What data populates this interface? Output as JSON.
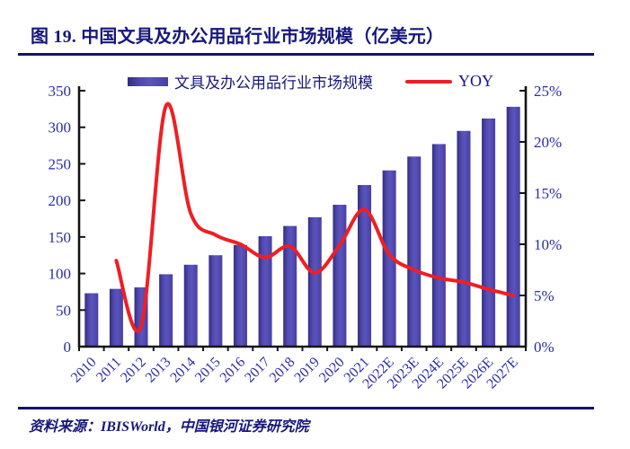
{
  "title": "图 19. 中国文具及办公用品行业市场规模（亿美元）",
  "legend": {
    "bar_label": "文具及办公用品行业市场规模",
    "line_label": "YOY"
  },
  "footer": {
    "source": "资料来源：IBISWorld，中国银河证券研究院"
  },
  "colors": {
    "navy_text": "#17177d",
    "tick_label": "#2b2baa",
    "rule": "#131368",
    "axis": "#141414",
    "bar_gradient": [
      "#342d80",
      "#5049ae",
      "#5b54bc",
      "#473fa3"
    ],
    "line_red": "#ee1f24"
  },
  "chart_data": {
    "type": "bar+line combo",
    "title": "图 19. 中国文具及办公用品行业市场规模（亿美元）",
    "grid": false,
    "legend_position": "top",
    "categories": [
      "2010",
      "2011",
      "2012",
      "2013",
      "2014",
      "2015",
      "2016",
      "2017",
      "2018",
      "2019",
      "2020",
      "2021",
      "2022E",
      "2023E",
      "2024E",
      "2025E",
      "2026E",
      "2027E"
    ],
    "series": [
      {
        "name": "文具及办公用品行业市场规模",
        "type": "bar",
        "axis": "left",
        "unit": "亿美元",
        "values": [
          73,
          79,
          81,
          99,
          112,
          125,
          139,
          151,
          165,
          177,
          194,
          221,
          241,
          260,
          277,
          295,
          312,
          328
        ]
      },
      {
        "name": "YOY",
        "type": "line",
        "axis": "right",
        "unit": "%",
        "values": [
          null,
          8.4,
          2.0,
          23.5,
          13.0,
          10.9,
          10.0,
          8.7,
          9.8,
          7.2,
          9.9,
          13.4,
          9.0,
          7.5,
          6.7,
          6.3,
          5.6,
          5.0
        ]
      }
    ],
    "left_axis": {
      "min": 0,
      "max": 350,
      "step": 50,
      "tick_labels": [
        "0",
        "50",
        "100",
        "150",
        "200",
        "250",
        "300",
        "350"
      ]
    },
    "right_axis": {
      "min": 0,
      "max": 25,
      "step": 5,
      "tick_labels": [
        "0%",
        "5%",
        "10%",
        "15%",
        "20%",
        "25%"
      ]
    }
  }
}
